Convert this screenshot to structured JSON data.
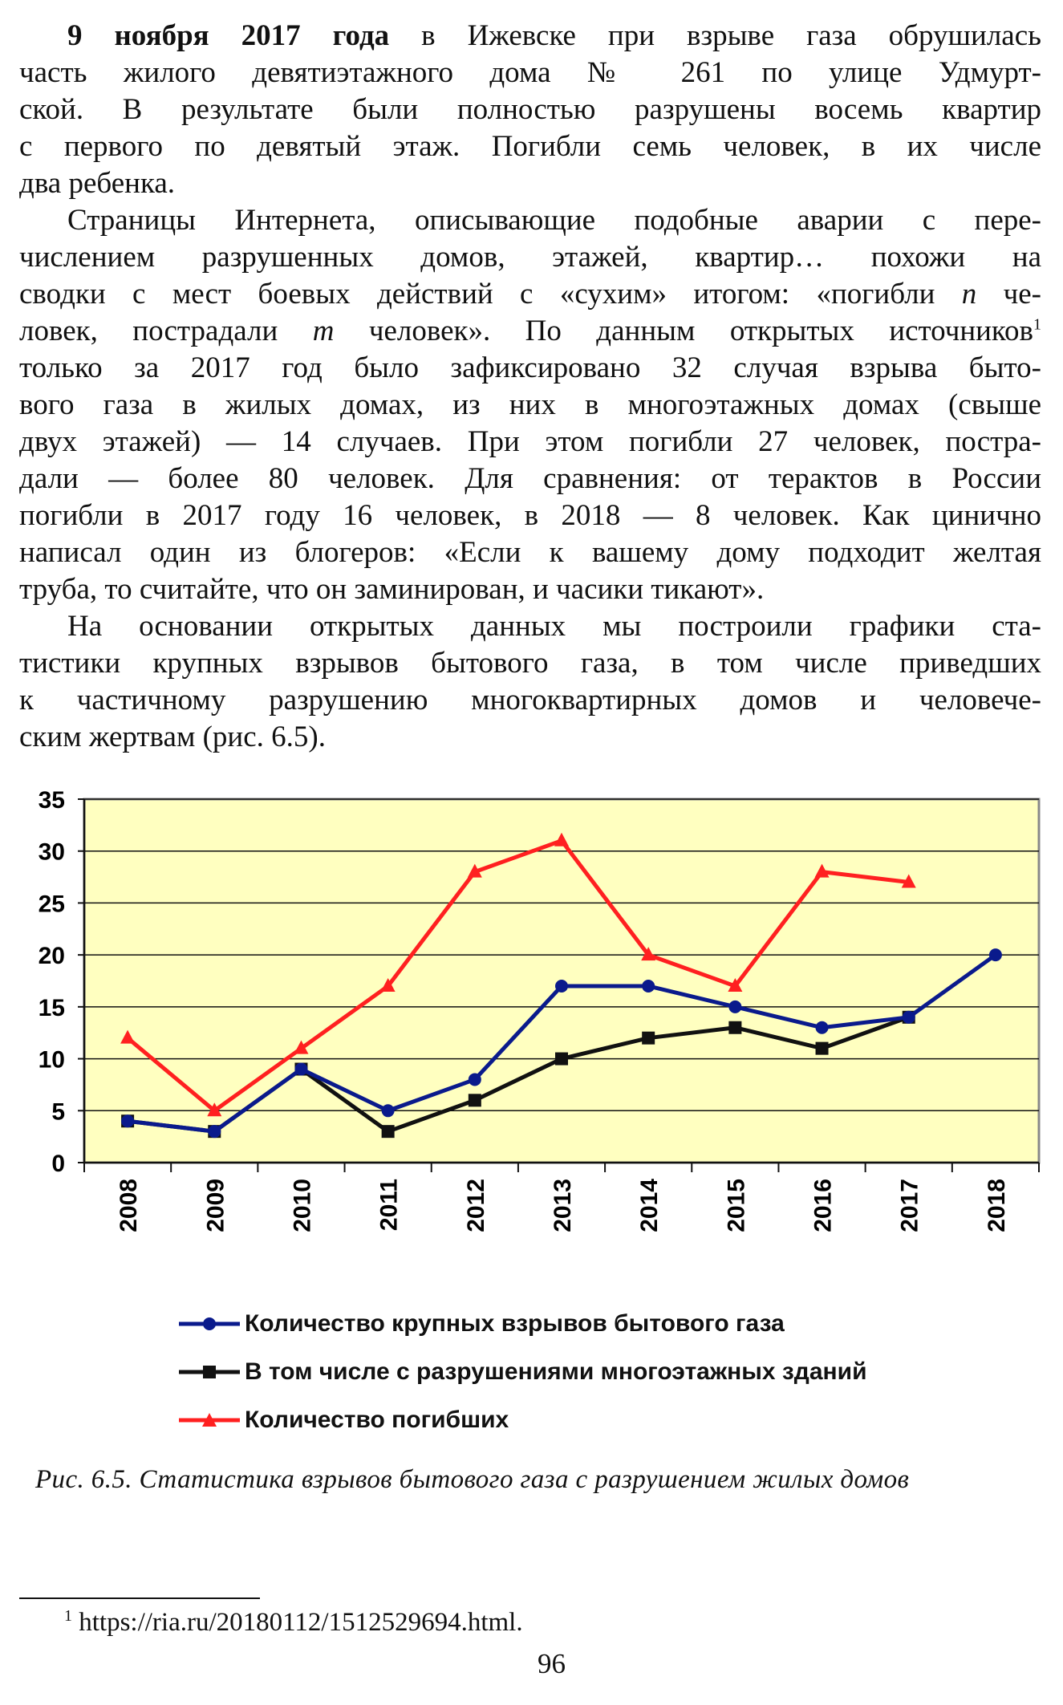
{
  "paragraphs": [
    {
      "lines": [
        [
          [
            "9 ноября 2017 года",
            "b"
          ],
          [
            " в Ижевске при взрыве газа обрушилась",
            ""
          ]
        ],
        [
          [
            "часть жилого девятиэтажного дома № 261 по улице Удмурт-",
            ""
          ]
        ],
        [
          [
            "ской. В результате были полностью разрушены восемь квартир",
            ""
          ]
        ],
        [
          [
            "с первого по девятый этаж. Погибли семь человек, в их числе",
            ""
          ]
        ],
        [
          [
            "два ребенка.",
            ""
          ]
        ]
      ]
    },
    {
      "lines": [
        [
          [
            "Страницы Интернета, описывающие подобные аварии с пере-",
            ""
          ]
        ],
        [
          [
            "числением разрушенных домов, этажей, квартир… похожи на",
            ""
          ]
        ],
        [
          [
            "сводки с мест боевых действий с «сухим» итогом: «погибли ",
            ""
          ],
          [
            "n",
            "i"
          ],
          [
            " че-",
            ""
          ]
        ],
        [
          [
            "ловек, пострадали ",
            ""
          ],
          [
            "m",
            "i"
          ],
          [
            " человек». По данным открытых источников",
            ""
          ],
          [
            "1",
            "sup"
          ]
        ],
        [
          [
            "только за 2017 год было зафиксировано 32 случая взрыва быто-",
            ""
          ]
        ],
        [
          [
            "вого газа в жилых домах, из них в многоэтажных домах (свыше",
            ""
          ]
        ],
        [
          [
            "двух этажей) — 14 случаев. При этом погибли 27 человек, постра-",
            ""
          ]
        ],
        [
          [
            "дали — более 80 человек. Для сравнения: от терактов в России",
            ""
          ]
        ],
        [
          [
            "погибли в 2017 году 16 человек, в 2018 — 8 человек. Как цинично",
            ""
          ]
        ],
        [
          [
            "написал один из блогеров: «Если к вашему дому подходит желтая",
            ""
          ]
        ],
        [
          [
            "труба, то считайте, что он заминирован, и часики тикают».",
            ""
          ]
        ]
      ]
    },
    {
      "lines": [
        [
          [
            "На основании открытых данных мы построили графики ста-",
            ""
          ]
        ],
        [
          [
            "тистики крупных взрывов бытового газа, в том числе приведших",
            ""
          ]
        ],
        [
          [
            "к частичному разрушению многоквартирных домов и человече-",
            ""
          ]
        ],
        [
          [
            "ским жертвам (рис. 6.5).",
            ""
          ]
        ]
      ]
    }
  ],
  "chart_data": {
    "type": "line",
    "categories": [
      "2008",
      "2009",
      "2010",
      "2011",
      "2012",
      "2013",
      "2014",
      "2015",
      "2016",
      "2017",
      "2018"
    ],
    "ylim": [
      0,
      35
    ],
    "yticks": [
      "0",
      "5",
      "10",
      "15",
      "20",
      "25",
      "30",
      "35"
    ],
    "grid": true,
    "background": "#ffffc0",
    "legend_placement": "bottom",
    "series": [
      {
        "name": "Количество крупных взрывов бытового газа",
        "color": "#0a1a8c",
        "marker": "circle",
        "values": [
          4,
          3,
          9,
          5,
          8,
          17,
          17,
          15,
          13,
          14,
          20
        ]
      },
      {
        "name": "В том числе с разрушениями многоэтажных зданий",
        "color": "#111111",
        "marker": "square",
        "values": [
          4,
          3,
          9,
          3,
          6,
          10,
          12,
          13,
          11,
          14,
          null
        ]
      },
      {
        "name": "Количество погибших",
        "color": "#ff2020",
        "marker": "triangle",
        "values": [
          12,
          5,
          11,
          17,
          28,
          31,
          20,
          17,
          28,
          27,
          null
        ]
      }
    ]
  },
  "caption": "Рис. 6.5. Статистика взрывов бытового газа с разрушением жилых домов",
  "footnote": {
    "mark": "1",
    "text": " https://ria.ru/20180112/1512529694.html."
  },
  "page_number": "96"
}
